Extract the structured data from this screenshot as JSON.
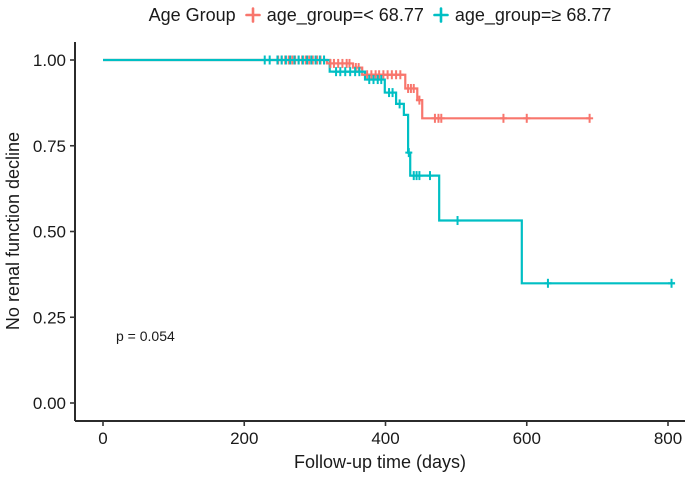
{
  "legend": {
    "title": "Age Group",
    "items": [
      {
        "label": "age_group=< 68.77",
        "color": "#F8766D",
        "marker_icon": "plus-icon"
      },
      {
        "label": "age_group=≥ 68.77",
        "color": "#00BFC4",
        "marker_icon": "plus-icon"
      }
    ]
  },
  "chart_data": {
    "type": "line",
    "subtype": "kaplan-meier-step",
    "xlabel": "Follow-up time (days)",
    "ylabel": "No renal function decline",
    "xlim": [
      0,
      830
    ],
    "ylim": [
      0,
      1.0
    ],
    "grid": false,
    "legend_position": "top",
    "x_ticks": [
      {
        "v": 0,
        "label": "0"
      },
      {
        "v": 200,
        "label": "200"
      },
      {
        "v": 400,
        "label": "400"
      },
      {
        "v": 600,
        "label": "600"
      },
      {
        "v": 800,
        "label": "800"
      }
    ],
    "y_ticks": [
      {
        "v": 0.0,
        "label": "0.00"
      },
      {
        "v": 0.25,
        "label": "0.25"
      },
      {
        "v": 0.5,
        "label": "0.50"
      },
      {
        "v": 0.75,
        "label": "0.75"
      },
      {
        "v": 1.0,
        "label": "1.00"
      }
    ],
    "annotations": [
      {
        "text": "p = 0.054",
        "x_day": 18,
        "y_value": 0.18
      }
    ],
    "series": [
      {
        "name": "age_group=< 68.77",
        "color": "#F8766D",
        "start": [
          0,
          1.0
        ],
        "steps": [
          [
            317,
            0.99
          ],
          [
            354,
            0.978
          ],
          [
            367,
            0.957
          ],
          [
            428,
            0.917
          ],
          [
            445,
            0.883
          ],
          [
            452,
            0.83
          ]
        ],
        "end_day": 690,
        "censors": [
          [
            248,
            1
          ],
          [
            253,
            1
          ],
          [
            258,
            1
          ],
          [
            263,
            1
          ],
          [
            268,
            1
          ],
          [
            272,
            1
          ],
          [
            277,
            1
          ],
          [
            282,
            1
          ],
          [
            287,
            1
          ],
          [
            292,
            1
          ],
          [
            297,
            1
          ],
          [
            303,
            1
          ],
          [
            308,
            1
          ],
          [
            322,
            0.99
          ],
          [
            327,
            0.99
          ],
          [
            333,
            0.99
          ],
          [
            339,
            0.99
          ],
          [
            345,
            0.99
          ],
          [
            349,
            0.99
          ],
          [
            358,
            0.978
          ],
          [
            362,
            0.978
          ],
          [
            374,
            0.957
          ],
          [
            380,
            0.957
          ],
          [
            386,
            0.957
          ],
          [
            391,
            0.957
          ],
          [
            397,
            0.957
          ],
          [
            403,
            0.957
          ],
          [
            409,
            0.957
          ],
          [
            415,
            0.957
          ],
          [
            421,
            0.957
          ],
          [
            432,
            0.917
          ],
          [
            436,
            0.917
          ],
          [
            440,
            0.917
          ],
          [
            448,
            0.883
          ],
          [
            470,
            0.83
          ],
          [
            475,
            0.83
          ],
          [
            479,
            0.83
          ],
          [
            567,
            0.83
          ],
          [
            600,
            0.83
          ],
          [
            689,
            0.83
          ]
        ]
      },
      {
        "name": "age_group=≥ 68.77",
        "color": "#00BFC4",
        "start": [
          0,
          1.0
        ],
        "steps": [
          [
            321,
            0.966
          ],
          [
            371,
            0.943
          ],
          [
            399,
            0.905
          ],
          [
            415,
            0.872
          ],
          [
            426,
            0.84
          ],
          [
            432,
            0.73
          ],
          [
            435,
            0.663
          ],
          [
            476,
            0.532
          ],
          [
            593,
            0.349
          ]
        ],
        "end_day": 810,
        "censors": [
          [
            229,
            1
          ],
          [
            236,
            1
          ],
          [
            247,
            1
          ],
          [
            253,
            1
          ],
          [
            259,
            1
          ],
          [
            265,
            1
          ],
          [
            271,
            1
          ],
          [
            277,
            1
          ],
          [
            283,
            1
          ],
          [
            289,
            1
          ],
          [
            295,
            1
          ],
          [
            301,
            1
          ],
          [
            307,
            1
          ],
          [
            313,
            1
          ],
          [
            330,
            0.966
          ],
          [
            336,
            0.966
          ],
          [
            343,
            0.966
          ],
          [
            350,
            0.966
          ],
          [
            357,
            0.966
          ],
          [
            363,
            0.966
          ],
          [
            377,
            0.943
          ],
          [
            383,
            0.943
          ],
          [
            389,
            0.943
          ],
          [
            394,
            0.943
          ],
          [
            405,
            0.905
          ],
          [
            410,
            0.905
          ],
          [
            420,
            0.872
          ],
          [
            433,
            0.73
          ],
          [
            440,
            0.663
          ],
          [
            444,
            0.663
          ],
          [
            448,
            0.663
          ],
          [
            463,
            0.663
          ],
          [
            502,
            0.532
          ],
          [
            630,
            0.349
          ],
          [
            805,
            0.349
          ]
        ]
      }
    ]
  }
}
